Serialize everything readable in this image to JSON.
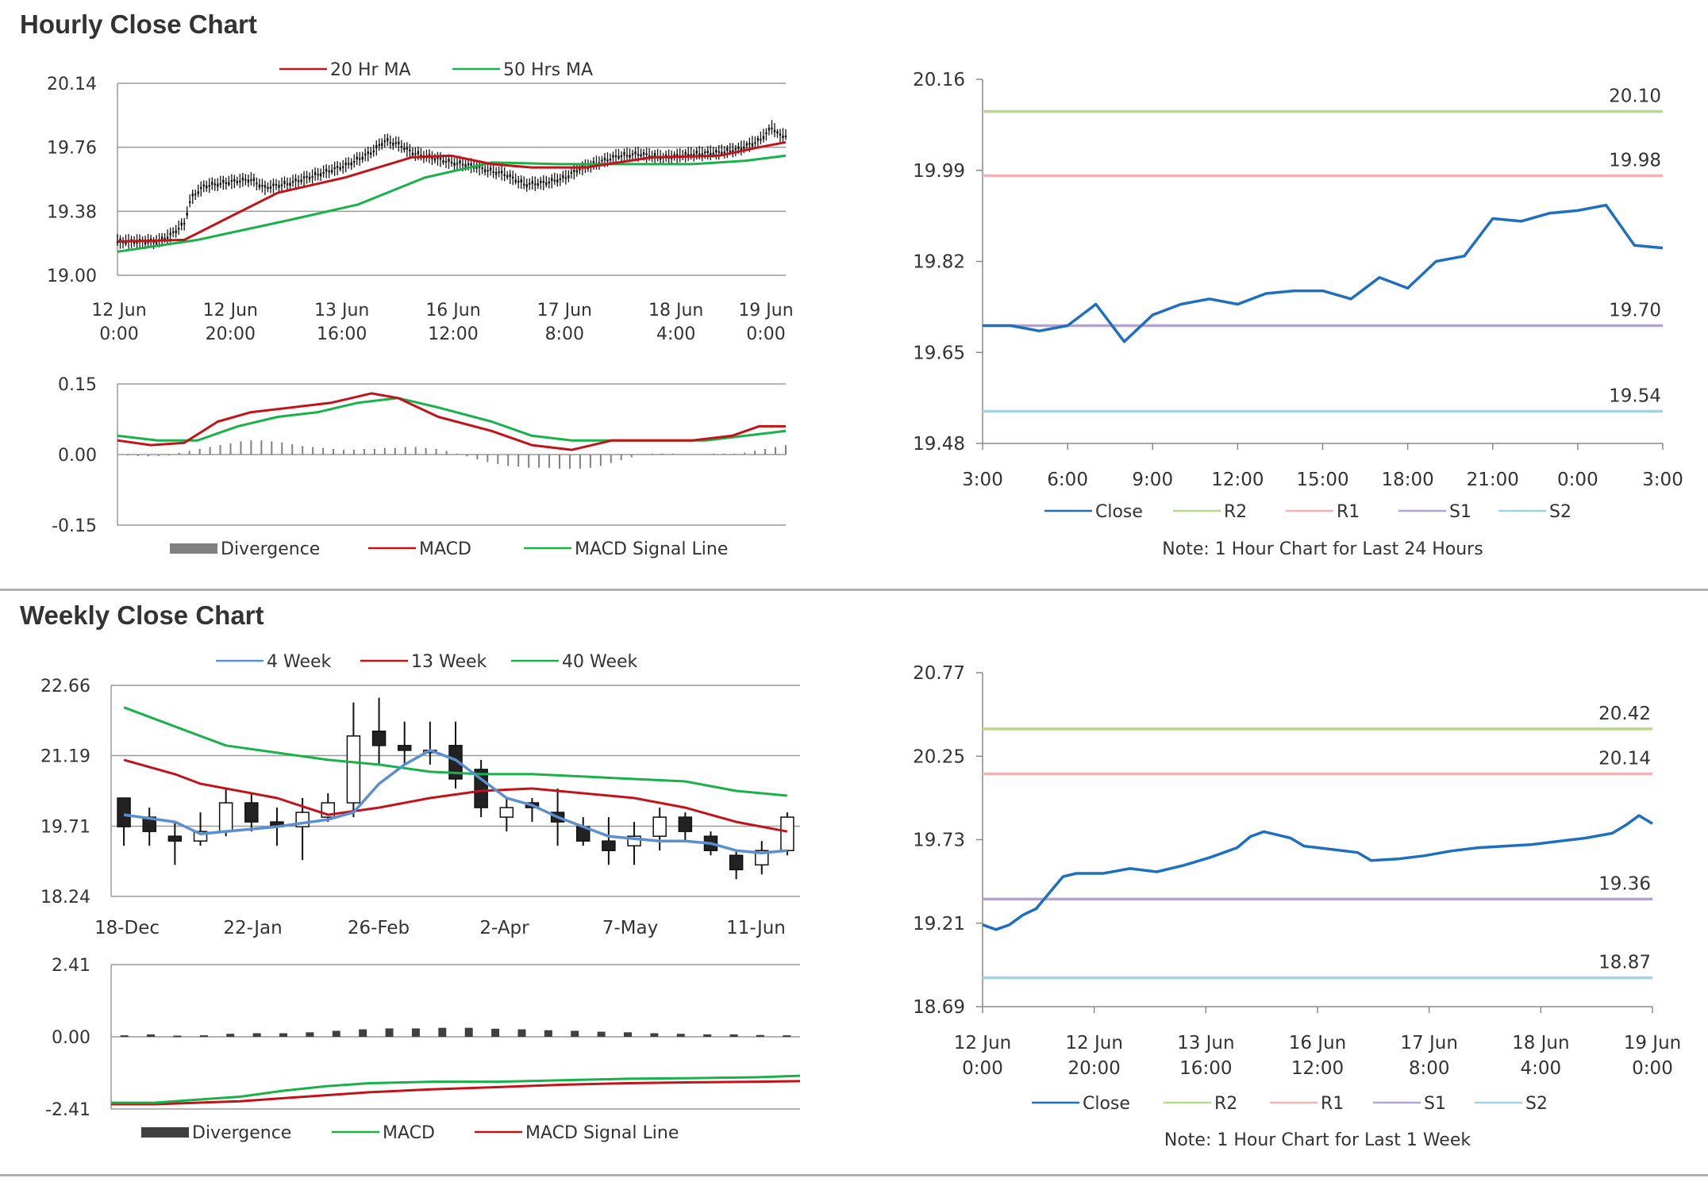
{
  "hourly_section": {
    "title": "Hourly Close Chart"
  },
  "weekly_section": {
    "title": "Weekly Close Chart"
  },
  "chart_data": [
    {
      "id": "hourly_price",
      "type": "candlestick",
      "legend": [
        "20 Hr MA",
        "50 Hrs MA"
      ],
      "colors": {
        "ma20": "#c0141a",
        "ma50": "#1ab04a",
        "candle": "#111111"
      },
      "ylim": [
        19.0,
        20.14
      ],
      "yticks": [
        "20.14",
        "19.76",
        "19.38",
        "19.00"
      ],
      "xticks": [
        [
          "12 Jun",
          "0:00"
        ],
        [
          "12 Jun",
          "20:00"
        ],
        [
          "13 Jun",
          "16:00"
        ],
        [
          "16 Jun",
          "12:00"
        ],
        [
          "17 Jun",
          "8:00"
        ],
        [
          "18 Jun",
          "4:00"
        ],
        [
          "19 Jun",
          "0:00"
        ]
      ],
      "close_path": [
        [
          0,
          19.2
        ],
        [
          6,
          19.2
        ],
        [
          8,
          19.24
        ],
        [
          10,
          19.31
        ],
        [
          11,
          19.46
        ],
        [
          13,
          19.53
        ],
        [
          16,
          19.55
        ],
        [
          20,
          19.57
        ],
        [
          22,
          19.52
        ],
        [
          26,
          19.55
        ],
        [
          30,
          19.6
        ],
        [
          34,
          19.65
        ],
        [
          38,
          19.73
        ],
        [
          40,
          19.8
        ],
        [
          42,
          19.78
        ],
        [
          44,
          19.73
        ],
        [
          47,
          19.7
        ],
        [
          50,
          19.67
        ],
        [
          52,
          19.66
        ],
        [
          55,
          19.63
        ],
        [
          58,
          19.6
        ],
        [
          61,
          19.54
        ],
        [
          64,
          19.55
        ],
        [
          67,
          19.58
        ],
        [
          69,
          19.63
        ],
        [
          72,
          19.67
        ],
        [
          75,
          19.71
        ],
        [
          78,
          19.72
        ],
        [
          82,
          19.7
        ],
        [
          86,
          19.72
        ],
        [
          90,
          19.73
        ],
        [
          93,
          19.75
        ],
        [
          96,
          19.8
        ],
        [
          98,
          19.88
        ],
        [
          99,
          19.83
        ]
      ],
      "ma20": [
        [
          0,
          19.2
        ],
        [
          10,
          19.21
        ],
        [
          16,
          19.33
        ],
        [
          24,
          19.49
        ],
        [
          34,
          19.58
        ],
        [
          44,
          19.7
        ],
        [
          50,
          19.71
        ],
        [
          56,
          19.66
        ],
        [
          62,
          19.64
        ],
        [
          70,
          19.64
        ],
        [
          80,
          19.7
        ],
        [
          90,
          19.71
        ],
        [
          96,
          19.76
        ],
        [
          100,
          19.79
        ]
      ],
      "ma50": [
        [
          0,
          19.14
        ],
        [
          12,
          19.21
        ],
        [
          26,
          19.33
        ],
        [
          36,
          19.42
        ],
        [
          46,
          19.58
        ],
        [
          56,
          19.67
        ],
        [
          66,
          19.66
        ],
        [
          76,
          19.66
        ],
        [
          86,
          19.66
        ],
        [
          94,
          19.68
        ],
        [
          100,
          19.71
        ]
      ]
    },
    {
      "id": "hourly_macd",
      "type": "line",
      "legend": [
        "Divergence",
        "MACD",
        "MACD Signal Line"
      ],
      "colors": {
        "divergence": "#808080",
        "macd": "#c0141a",
        "signal": "#1ab04a"
      },
      "ylim": [
        -0.15,
        0.15
      ],
      "yticks": [
        "0.15",
        "0.00",
        "-0.15"
      ],
      "macd": [
        [
          0,
          0.03
        ],
        [
          5,
          0.02
        ],
        [
          10,
          0.025
        ],
        [
          15,
          0.07
        ],
        [
          20,
          0.09
        ],
        [
          26,
          0.1
        ],
        [
          32,
          0.11
        ],
        [
          38,
          0.13
        ],
        [
          42,
          0.12
        ],
        [
          48,
          0.08
        ],
        [
          56,
          0.05
        ],
        [
          62,
          0.02
        ],
        [
          68,
          0.01
        ],
        [
          74,
          0.03
        ],
        [
          80,
          0.03
        ],
        [
          86,
          0.03
        ],
        [
          92,
          0.04
        ],
        [
          96,
          0.06
        ],
        [
          100,
          0.06
        ]
      ],
      "signal": [
        [
          0,
          0.04
        ],
        [
          6,
          0.03
        ],
        [
          12,
          0.03
        ],
        [
          18,
          0.06
        ],
        [
          24,
          0.08
        ],
        [
          30,
          0.09
        ],
        [
          36,
          0.11
        ],
        [
          42,
          0.12
        ],
        [
          48,
          0.1
        ],
        [
          56,
          0.07
        ],
        [
          62,
          0.04
        ],
        [
          68,
          0.03
        ],
        [
          74,
          0.03
        ],
        [
          80,
          0.03
        ],
        [
          88,
          0.03
        ],
        [
          94,
          0.04
        ],
        [
          100,
          0.05
        ]
      ],
      "divergence": [
        0.0,
        -0.002,
        -0.003,
        -0.004,
        -0.003,
        -0.002,
        0.004,
        0.008,
        0.012,
        0.016,
        0.02,
        0.024,
        0.028,
        0.03,
        0.03,
        0.028,
        0.026,
        0.022,
        0.018,
        0.016,
        0.014,
        0.012,
        0.01,
        0.01,
        0.012,
        0.012,
        0.014,
        0.014,
        0.016,
        0.016,
        0.014,
        0.012,
        0.008,
        0.002,
        -0.004,
        -0.01,
        -0.016,
        -0.02,
        -0.024,
        -0.026,
        -0.028,
        -0.028,
        -0.028,
        -0.03,
        -0.03,
        -0.03,
        -0.028,
        -0.024,
        -0.018,
        -0.012,
        -0.006,
        0.0,
        0.002,
        0.002,
        0.002,
        0.0,
        0.0,
        0.0,
        0.002,
        0.002,
        0.002,
        0.004,
        0.008,
        0.012,
        0.016,
        0.02
      ]
    },
    {
      "id": "hourly_pivot",
      "type": "line",
      "legend": [
        "Close",
        "R2",
        "R1",
        "S1",
        "S2"
      ],
      "colors": {
        "close": "#1f6fbf",
        "R2": "#b7d98b",
        "R1": "#f1b3b3",
        "S1": "#b3a3cf",
        "S2": "#9fd3e0"
      },
      "ylim": [
        19.48,
        20.16
      ],
      "yticks": [
        "20.16",
        "19.99",
        "19.82",
        "19.65",
        "19.48"
      ],
      "xticks": [
        "3:00",
        "6:00",
        "9:00",
        "12:00",
        "15:00",
        "18:00",
        "21:00",
        "0:00",
        "3:00"
      ],
      "levels": {
        "R2": "20.10",
        "R1": "19.98",
        "S1": "19.70",
        "S2": "19.54"
      },
      "close": [
        19.7,
        19.7,
        19.69,
        19.7,
        19.74,
        19.67,
        19.72,
        19.74,
        19.75,
        19.74,
        19.76,
        19.765,
        19.765,
        19.75,
        19.79,
        19.77,
        19.82,
        19.83,
        19.9,
        19.895,
        19.91,
        19.915,
        19.925,
        19.85,
        19.845
      ],
      "note": "Note: 1 Hour Chart for Last 24 Hours"
    },
    {
      "id": "weekly_price",
      "type": "candlestick",
      "legend": [
        "4 Week",
        "13 Week",
        "40 Week"
      ],
      "colors": {
        "w4": "#5b8fd0",
        "w13": "#c0141a",
        "w40": "#1ab04a"
      },
      "ylim": [
        18.24,
        22.66
      ],
      "yticks": [
        "22.66",
        "21.19",
        "19.71",
        "18.24"
      ],
      "xticks": [
        "18-Dec",
        "22-Jan",
        "26-Feb",
        "2-Apr",
        "7-May",
        "11-Jun"
      ],
      "candles": [
        [
          20.3,
          19.7,
          20.3,
          19.3
        ],
        [
          19.9,
          19.6,
          20.1,
          19.3
        ],
        [
          19.5,
          19.4,
          19.8,
          18.9
        ],
        [
          19.4,
          19.6,
          20.0,
          19.3
        ],
        [
          19.6,
          20.2,
          20.5,
          19.5
        ],
        [
          20.2,
          19.8,
          20.4,
          19.6
        ],
        [
          19.8,
          19.7,
          20.1,
          19.3
        ],
        [
          19.7,
          20.0,
          20.3,
          19.0
        ],
        [
          19.9,
          20.2,
          20.4,
          19.8
        ],
        [
          20.2,
          21.6,
          22.3,
          19.9
        ],
        [
          21.7,
          21.4,
          22.4,
          21.0
        ],
        [
          21.4,
          21.3,
          21.9,
          21.0
        ],
        [
          21.3,
          21.3,
          21.9,
          21.0
        ],
        [
          21.4,
          20.7,
          21.9,
          20.5
        ],
        [
          20.9,
          20.1,
          21.1,
          19.9
        ],
        [
          19.9,
          20.1,
          20.3,
          19.6
        ],
        [
          20.2,
          20.1,
          20.3,
          19.8
        ],
        [
          20.0,
          19.8,
          20.5,
          19.3
        ],
        [
          19.7,
          19.4,
          19.9,
          19.3
        ],
        [
          19.4,
          19.2,
          19.9,
          18.9
        ],
        [
          19.3,
          19.5,
          19.8,
          18.9
        ],
        [
          19.5,
          19.9,
          20.1,
          19.2
        ],
        [
          19.9,
          19.6,
          20.0,
          19.4
        ],
        [
          19.5,
          19.2,
          19.6,
          19.1
        ],
        [
          19.1,
          18.8,
          19.2,
          18.6
        ],
        [
          18.9,
          19.2,
          19.4,
          18.7
        ],
        [
          19.2,
          19.9,
          20.0,
          19.1
        ]
      ],
      "w4": [
        [
          0,
          19.95
        ],
        [
          2,
          19.8
        ],
        [
          3,
          19.55
        ],
        [
          6,
          19.7
        ],
        [
          8,
          19.85
        ],
        [
          9,
          20.0
        ],
        [
          10,
          20.6
        ],
        [
          11,
          21.0
        ],
        [
          12,
          21.3
        ],
        [
          13,
          21.1
        ],
        [
          14,
          20.7
        ],
        [
          15,
          20.3
        ],
        [
          16,
          20.15
        ],
        [
          17,
          19.9
        ],
        [
          18,
          19.7
        ],
        [
          19,
          19.5
        ],
        [
          20,
          19.45
        ],
        [
          21,
          19.4
        ],
        [
          22,
          19.4
        ],
        [
          23,
          19.35
        ],
        [
          24,
          19.2
        ],
        [
          25,
          19.15
        ],
        [
          26,
          19.2
        ]
      ],
      "w13": [
        [
          0,
          21.1
        ],
        [
          2,
          20.8
        ],
        [
          3,
          20.6
        ],
        [
          6,
          20.3
        ],
        [
          8,
          19.95
        ],
        [
          10,
          20.1
        ],
        [
          12,
          20.3
        ],
        [
          14,
          20.45
        ],
        [
          16,
          20.5
        ],
        [
          18,
          20.4
        ],
        [
          20,
          20.3
        ],
        [
          22,
          20.1
        ],
        [
          24,
          19.8
        ],
        [
          26,
          19.6
        ]
      ],
      "w40": [
        [
          0,
          22.2
        ],
        [
          2,
          21.8
        ],
        [
          4,
          21.4
        ],
        [
          6,
          21.25
        ],
        [
          8,
          21.1
        ],
        [
          10,
          21.0
        ],
        [
          12,
          20.85
        ],
        [
          14,
          20.8
        ],
        [
          16,
          20.8
        ],
        [
          18,
          20.75
        ],
        [
          20,
          20.7
        ],
        [
          22,
          20.65
        ],
        [
          24,
          20.45
        ],
        [
          26,
          20.35
        ]
      ]
    },
    {
      "id": "weekly_macd",
      "type": "line",
      "legend": [
        "Divergence",
        "MACD",
        "MACD Signal Line"
      ],
      "colors": {
        "divergence": "#404040",
        "macd": "#1ab04a",
        "signal": "#c0141a"
      },
      "ylim": [
        -2.41,
        2.41
      ],
      "yticks": [
        "2.41",
        "0.00",
        "-2.41"
      ],
      "macd": [
        [
          0,
          -2.2
        ],
        [
          4,
          -2.2
        ],
        [
          8,
          -2.1
        ],
        [
          12,
          -2.0
        ],
        [
          16,
          -1.8
        ],
        [
          20,
          -1.65
        ],
        [
          24,
          -1.55
        ],
        [
          30,
          -1.5
        ],
        [
          36,
          -1.5
        ],
        [
          42,
          -1.45
        ],
        [
          48,
          -1.4
        ],
        [
          54,
          -1.38
        ],
        [
          60,
          -1.35
        ],
        [
          64,
          -1.3
        ]
      ],
      "signal": [
        [
          0,
          -2.25
        ],
        [
          4,
          -2.25
        ],
        [
          8,
          -2.2
        ],
        [
          12,
          -2.15
        ],
        [
          16,
          -2.05
        ],
        [
          20,
          -1.95
        ],
        [
          24,
          -1.85
        ],
        [
          30,
          -1.75
        ],
        [
          36,
          -1.68
        ],
        [
          42,
          -1.6
        ],
        [
          48,
          -1.55
        ],
        [
          54,
          -1.52
        ],
        [
          60,
          -1.5
        ],
        [
          64,
          -1.48
        ]
      ],
      "divergence": [
        0.05,
        0.08,
        0.04,
        0.05,
        0.1,
        0.12,
        0.12,
        0.15,
        0.2,
        0.25,
        0.28,
        0.28,
        0.3,
        0.3,
        0.27,
        0.25,
        0.22,
        0.2,
        0.17,
        0.15,
        0.12,
        0.1,
        0.08,
        0.08,
        0.06,
        0.05
      ]
    },
    {
      "id": "weekly_pivot",
      "type": "line",
      "legend": [
        "Close",
        "R2",
        "R1",
        "S1",
        "S2"
      ],
      "colors": {
        "close": "#1f6fbf",
        "R2": "#b7d98b",
        "R1": "#f1b3b3",
        "S1": "#b3a3cf",
        "S2": "#9fd3e0"
      },
      "ylim": [
        18.69,
        20.77
      ],
      "yticks": [
        "20.77",
        "20.25",
        "19.73",
        "19.21",
        "18.69"
      ],
      "xticks": [
        [
          "12 Jun",
          "0:00"
        ],
        [
          "12 Jun",
          "20:00"
        ],
        [
          "13 Jun",
          "16:00"
        ],
        [
          "16 Jun",
          "12:00"
        ],
        [
          "17 Jun",
          "8:00"
        ],
        [
          "18 Jun",
          "4:00"
        ],
        [
          "19 Jun",
          "0:00"
        ]
      ],
      "levels": {
        "R2": "20.42",
        "R1": "20.14",
        "S1": "19.36",
        "S2": "18.87"
      },
      "close_path": [
        [
          0,
          19.2
        ],
        [
          2,
          19.17
        ],
        [
          4,
          19.2
        ],
        [
          6,
          19.26
        ],
        [
          8,
          19.3
        ],
        [
          10,
          19.4
        ],
        [
          12,
          19.5
        ],
        [
          14,
          19.52
        ],
        [
          18,
          19.52
        ],
        [
          22,
          19.55
        ],
        [
          26,
          19.53
        ],
        [
          30,
          19.57
        ],
        [
          34,
          19.62
        ],
        [
          38,
          19.68
        ],
        [
          40,
          19.75
        ],
        [
          42,
          19.78
        ],
        [
          44,
          19.76
        ],
        [
          46,
          19.74
        ],
        [
          48,
          19.69
        ],
        [
          52,
          19.67
        ],
        [
          56,
          19.65
        ],
        [
          58,
          19.6
        ],
        [
          62,
          19.61
        ],
        [
          66,
          19.63
        ],
        [
          70,
          19.66
        ],
        [
          74,
          19.68
        ],
        [
          78,
          19.69
        ],
        [
          82,
          19.7
        ],
        [
          86,
          19.72
        ],
        [
          90,
          19.74
        ],
        [
          94,
          19.77
        ],
        [
          96,
          19.82
        ],
        [
          98,
          19.88
        ],
        [
          100,
          19.83
        ]
      ],
      "note": "Note: 1 Hour Chart for Last 1 Week"
    }
  ]
}
